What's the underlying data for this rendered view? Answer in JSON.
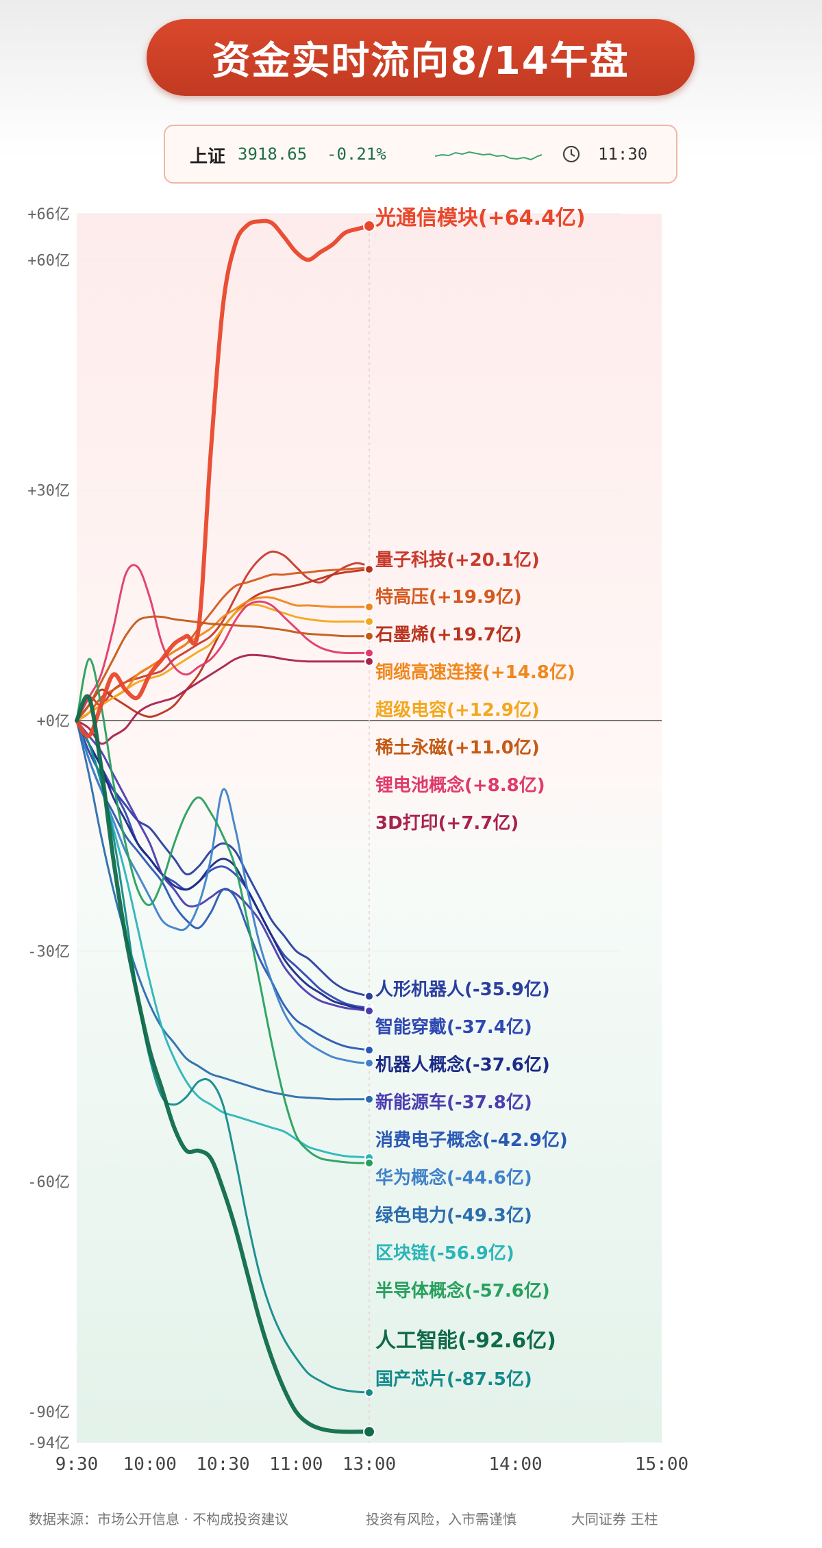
{
  "header": {
    "title": "资金实时流向8/14午盘"
  },
  "index_card": {
    "name": "上证",
    "value": "3918.65",
    "change": "-0.21%",
    "time": "11:30",
    "sparkline_icon": "index-sparkline-icon",
    "clock_icon": "clock-icon"
  },
  "chart_data": {
    "type": "line",
    "title": "",
    "xlabel": "",
    "ylabel": "",
    "x_ticks": [
      "9:30",
      "10:00",
      "10:30",
      "11:00",
      "13:00",
      "14:00",
      "15:00"
    ],
    "y_ticks": [
      {
        "value": 66,
        "label": "+66亿"
      },
      {
        "value": 60,
        "label": "+60亿"
      },
      {
        "value": 30,
        "label": "+30亿"
      },
      {
        "value": 0,
        "label": "+0亿"
      },
      {
        "value": -30,
        "label": "-30亿"
      },
      {
        "value": -60,
        "label": "-60亿"
      },
      {
        "value": -90,
        "label": "-90亿"
      },
      {
        "value": -94,
        "label": "-94亿"
      }
    ],
    "ylim": [
      -94,
      66
    ],
    "x": [
      0,
      5,
      10,
      15,
      20,
      25,
      30,
      35,
      40,
      45,
      50,
      55,
      60,
      65,
      70,
      75,
      80,
      85,
      90,
      95,
      100,
      105,
      110,
      115,
      120
    ],
    "x_unit": "minutes since 9:30 (continuous trading time; 11:30/13:00 break merged)",
    "series": [
      {
        "name": "光通信模块",
        "label": "光通信模块(+64.4亿)",
        "color": "#e8472b",
        "width": 6,
        "values": [
          0,
          -2,
          2,
          6,
          4,
          3,
          6,
          8,
          10,
          11,
          12,
          35,
          54,
          62,
          64.5,
          65,
          64.8,
          63,
          61,
          60,
          61,
          62,
          63.5,
          64,
          64.4
        ]
      },
      {
        "name": "量子科技",
        "label": "量子科技(+20.1亿)",
        "color": "#c73a2c",
        "width": 3,
        "values": [
          0,
          3,
          2,
          4,
          5,
          5.5,
          6,
          6.5,
          8,
          9,
          10,
          11,
          13,
          16,
          19,
          21,
          22,
          21.5,
          20,
          18.5,
          18,
          19,
          20,
          20.5,
          20.1
        ]
      },
      {
        "name": "特高压",
        "label": "特高压(+19.9亿)",
        "color": "#d5581f",
        "width": 3,
        "values": [
          0,
          1,
          3,
          4,
          5,
          6,
          7,
          8,
          9,
          10,
          12,
          14,
          16,
          17.5,
          18,
          18.5,
          19,
          19,
          19.2,
          19.3,
          19.5,
          19.6,
          19.7,
          19.8,
          19.9
        ]
      },
      {
        "name": "石墨烯",
        "label": "石墨烯(+19.7亿)",
        "color": "#b9341f",
        "width": 3,
        "values": [
          0,
          2,
          4,
          3,
          2,
          1,
          0.5,
          1,
          2,
          4,
          6,
          9,
          12,
          14,
          15.5,
          16.5,
          17,
          17.3,
          17.6,
          18,
          18.5,
          19,
          19.3,
          19.5,
          19.7
        ]
      },
      {
        "name": "铜缆高速连接",
        "label": "铜缆高速连接(+14.8亿)",
        "color": "#f0871a",
        "width": 3,
        "values": [
          0,
          1,
          2,
          3,
          4,
          6,
          7,
          8,
          9,
          10,
          11,
          12,
          13.5,
          14.5,
          15.5,
          16,
          16,
          15.5,
          15,
          15,
          14.9,
          14.8,
          14.8,
          14.8,
          14.8
        ]
      },
      {
        "name": "超级电容",
        "label": "超级电容(+12.9亿)",
        "color": "#f2a81d",
        "width": 3,
        "values": [
          0,
          1,
          2,
          3,
          4,
          5,
          5.5,
          6,
          7,
          8,
          9,
          10,
          12,
          14,
          15,
          15,
          14.5,
          14,
          13.5,
          13.2,
          13,
          12.9,
          12.9,
          12.9,
          12.9
        ]
      },
      {
        "name": "稀土永磁",
        "label": "稀土永磁(+11.0亿)",
        "color": "#c45a14",
        "width": 3,
        "values": [
          0,
          2,
          5,
          8,
          11,
          13,
          13.5,
          13.5,
          13.2,
          13,
          12.8,
          12.6,
          12.5,
          12.4,
          12.3,
          12.2,
          12,
          11.8,
          11.5,
          11.3,
          11.2,
          11.1,
          11,
          11,
          11
        ]
      },
      {
        "name": "锂电池概念",
        "label": "锂电池概念(+8.8亿)",
        "color": "#e03a6a",
        "width": 3,
        "values": [
          0,
          3,
          6,
          12,
          19,
          20,
          16,
          10,
          7,
          6,
          7,
          8,
          10,
          13,
          15,
          15.5,
          15,
          13.5,
          12,
          10.5,
          9.5,
          9,
          8.8,
          8.8,
          8.8
        ]
      },
      {
        "name": "3D打印",
        "label": "3D打印(+7.7亿)",
        "color": "#a8224f",
        "width": 3,
        "values": [
          0,
          -1,
          -3,
          -2,
          -1,
          1,
          2,
          2.5,
          3,
          4,
          5,
          6,
          7,
          8,
          8.5,
          8.5,
          8.3,
          8,
          7.8,
          7.7,
          7.7,
          7.7,
          7.7,
          7.7,
          7.7
        ]
      },
      {
        "name": "人形机器人",
        "label": "人形机器人(+-35.9亿)",
        "color": "#2a3fa0",
        "width": 3,
        "values": [
          0,
          -4,
          -7,
          -9,
          -11,
          -13,
          -14,
          -16,
          -18,
          -20,
          -19,
          -17,
          -16,
          -17,
          -20,
          -23,
          -26,
          -28,
          -30,
          -31,
          -32.5,
          -34,
          -35,
          -35.5,
          -35.9
        ]
      },
      {
        "name": "智能穿戴",
        "label": "智能穿戴(-37.4亿)",
        "color": "#2f49b3",
        "width": 3,
        "values": [
          0,
          -3,
          -6,
          -9,
          -12,
          -16,
          -18,
          -20,
          -21,
          -22,
          -21,
          -19.5,
          -19,
          -20,
          -22,
          -25,
          -28,
          -30.5,
          -32,
          -33.5,
          -35,
          -36,
          -36.8,
          -37.2,
          -37.4
        ]
      },
      {
        "name": "机器人概念",
        "label": "机器人概念(-37.6亿)",
        "color": "#1c2b86",
        "width": 3,
        "values": [
          0,
          -3,
          -6,
          -10,
          -13,
          -16,
          -18,
          -20,
          -21.5,
          -22,
          -21,
          -19,
          -18,
          -19,
          -22,
          -25,
          -28,
          -31,
          -33,
          -34.5,
          -35.5,
          -36.5,
          -37,
          -37.4,
          -37.6
        ]
      },
      {
        "name": "新能源车",
        "label": "新能源车(-37.8亿)",
        "color": "#4b3db1",
        "width": 3,
        "values": [
          0,
          -2,
          -4,
          -7,
          -10,
          -13,
          -16,
          -20,
          -22,
          -24,
          -24,
          -23,
          -22,
          -22.5,
          -24,
          -26,
          -29,
          -32,
          -34,
          -35.5,
          -36.5,
          -37,
          -37.4,
          -37.6,
          -37.8
        ]
      },
      {
        "name": "消费电子概念",
        "label": "消费电子概念(-42.9亿)",
        "color": "#2a58b5",
        "width": 3,
        "values": [
          0,
          -5,
          -9,
          -12,
          -15,
          -17,
          -19,
          -21,
          -24,
          -26,
          -27,
          -25,
          -22,
          -23,
          -27,
          -31,
          -34,
          -37,
          -39,
          -40,
          -41,
          -41.8,
          -42.4,
          -42.7,
          -42.9
        ]
      },
      {
        "name": "华为概念",
        "label": "华为概念(-44.6亿)",
        "color": "#3f82c9",
        "width": 3,
        "values": [
          0,
          -5,
          -9,
          -13,
          -17,
          -20,
          -23,
          -26,
          -27,
          -27,
          -24,
          -18,
          -9,
          -14,
          -22,
          -29,
          -34,
          -38,
          -40.5,
          -42,
          -43,
          -43.8,
          -44.2,
          -44.5,
          -44.6
        ]
      },
      {
        "name": "绿色电力",
        "label": "绿色电力(-49.3亿)",
        "color": "#2a6dae",
        "width": 3,
        "values": [
          0,
          -7,
          -15,
          -22,
          -28,
          -33,
          -37,
          -40,
          -42,
          -44,
          -45,
          -46,
          -46.5,
          -47,
          -47.5,
          -48,
          -48.4,
          -48.7,
          -49,
          -49.1,
          -49.2,
          -49.3,
          -49.3,
          -49.3,
          -49.3
        ]
      },
      {
        "name": "区块链",
        "label": "区块链(-56.9亿)",
        "color": "#2bb5b8",
        "width": 3,
        "values": [
          0,
          -3,
          -8,
          -14,
          -20,
          -27,
          -34,
          -40,
          -44,
          -47,
          -49,
          -50,
          -51,
          -51.5,
          -52,
          -52.5,
          -53,
          -53.5,
          -54.5,
          -55.5,
          -56,
          -56.4,
          -56.7,
          -56.8,
          -56.9
        ]
      },
      {
        "name": "半导体概念",
        "label": "半导体概念(-57.6亿)",
        "color": "#27a05e",
        "width": 3,
        "values": [
          0,
          8,
          2,
          -8,
          -16,
          -22,
          -24,
          -21,
          -16,
          -12,
          -10,
          -12,
          -15,
          -19,
          -26,
          -34,
          -42,
          -49,
          -54,
          -56,
          -57,
          -57.3,
          -57.5,
          -57.6,
          -57.6
        ]
      },
      {
        "name": "人工智能",
        "label": "人工智能(-92.6亿)",
        "color": "#0f6b4a",
        "width": 6,
        "values": [
          0,
          3,
          -6,
          -18,
          -28,
          -36,
          -43,
          -48,
          -53,
          -56,
          -56,
          -57,
          -61,
          -66,
          -72,
          -78,
          -83,
          -87,
          -90,
          -91.5,
          -92.2,
          -92.5,
          -92.6,
          -92.6,
          -92.6
        ]
      },
      {
        "name": "国产芯片",
        "label": "国产芯片(-87.5亿)",
        "color": "#148a8a",
        "width": 3,
        "values": [
          0,
          -3,
          -8,
          -15,
          -25,
          -36,
          -44,
          -49,
          -50,
          -49,
          -47,
          -47,
          -50,
          -57,
          -65,
          -72,
          -77,
          -80.5,
          -83,
          -85,
          -86,
          -86.8,
          -87.2,
          -87.4,
          -87.5
        ]
      }
    ],
    "legend_placement": "end labels at right",
    "zero_line": true
  },
  "footer": {
    "source": "数据来源：市场公开信息 · 不构成投资建议",
    "risk": "投资有风险，入市需谨慎",
    "firm": "大同证券 王柱"
  }
}
